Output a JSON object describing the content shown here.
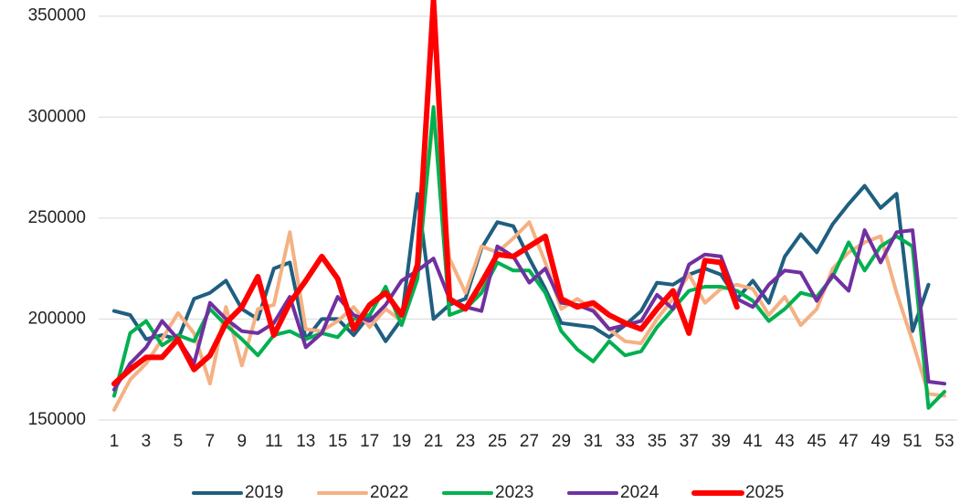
{
  "chart_data": {
    "type": "line",
    "categories": [
      "1",
      null,
      "3",
      null,
      "5",
      null,
      "7",
      null,
      "9",
      null,
      "11",
      null,
      "13",
      null,
      "15",
      null,
      "17",
      null,
      "19",
      null,
      "21",
      null,
      "23",
      null,
      "25",
      null,
      "27",
      null,
      "29",
      null,
      "31",
      null,
      "33",
      null,
      "35",
      null,
      "37",
      null,
      "39",
      null,
      "41",
      null,
      "43",
      null,
      "45",
      null,
      "47",
      null,
      "49",
      null,
      "51",
      null,
      "53"
    ],
    "ylim": [
      150000,
      358000
    ],
    "yticks": [
      150000,
      200000,
      250000,
      300000,
      350000
    ],
    "grid": true,
    "legend": "bottom",
    "series": [
      {
        "name": "2019",
        "color": "#1f5f80",
        "values": [
          204000,
          202000,
          190000,
          192000,
          190000,
          210000,
          213000,
          219000,
          205000,
          200000,
          225000,
          228000,
          190000,
          200000,
          200000,
          192000,
          202000,
          189000,
          200000,
          262000,
          200000,
          207000,
          210000,
          235000,
          248000,
          246000,
          230000,
          215000,
          198000,
          197000,
          196000,
          191000,
          197000,
          204000,
          218000,
          217000,
          222000,
          225000,
          222000,
          210000,
          219000,
          208000,
          231000,
          242000,
          233000,
          247000,
          257000,
          266000,
          255000,
          262000,
          194000,
          217000,
          null
        ]
      },
      {
        "name": "2022",
        "color": "#f4b183",
        "values": [
          155000,
          170000,
          178000,
          190000,
          203000,
          193000,
          168000,
          206000,
          177000,
          205000,
          207000,
          243000,
          195000,
          194000,
          199000,
          206000,
          196000,
          205000,
          199000,
          226000,
          300000,
          230000,
          213000,
          236000,
          233000,
          240000,
          248000,
          228000,
          205000,
          210000,
          205000,
          195000,
          189000,
          188000,
          200000,
          210000,
          222000,
          208000,
          215000,
          217000,
          215000,
          202000,
          211000,
          197000,
          205000,
          225000,
          233000,
          238000,
          241000,
          213000,
          189000,
          163000,
          162000
        ]
      },
      {
        "name": "2023",
        "color": "#00b050",
        "values": [
          162000,
          193000,
          199000,
          187000,
          192000,
          189000,
          205000,
          197000,
          190000,
          182000,
          192000,
          194000,
          190000,
          193000,
          191000,
          200000,
          202000,
          216000,
          197000,
          220000,
          305000,
          202000,
          205000,
          213000,
          228000,
          224000,
          224000,
          213000,
          194000,
          185000,
          179000,
          189000,
          182000,
          184000,
          196000,
          205000,
          214000,
          216000,
          216000,
          214000,
          209000,
          199000,
          205000,
          213000,
          211000,
          221000,
          238000,
          224000,
          236000,
          241000,
          236000,
          156000,
          164000
        ]
      },
      {
        "name": "2024",
        "color": "#7030a0",
        "values": [
          165000,
          178000,
          186000,
          199000,
          190000,
          178000,
          208000,
          200000,
          194000,
          193000,
          198000,
          211000,
          186000,
          193000,
          211000,
          202000,
          199000,
          207000,
          219000,
          224000,
          230000,
          210000,
          206000,
          204000,
          236000,
          231000,
          218000,
          225000,
          208000,
          207000,
          204000,
          195000,
          197000,
          199000,
          212000,
          205000,
          227000,
          232000,
          231000,
          210000,
          206000,
          217000,
          224000,
          223000,
          209000,
          222000,
          214000,
          244000,
          228000,
          243000,
          244000,
          169000,
          168000
        ]
      },
      {
        "name": "2025",
        "color": "#ff0000",
        "values": [
          168000,
          175000,
          181000,
          181000,
          190000,
          175000,
          182000,
          198000,
          206000,
          221000,
          192000,
          208000,
          219000,
          231000,
          220000,
          195000,
          207000,
          213000,
          202000,
          227000,
          358000,
          210000,
          205000,
          218000,
          232000,
          231000,
          236000,
          241000,
          210000,
          206000,
          208000,
          202000,
          198000,
          195000,
          205000,
          214000,
          193000,
          229000,
          228000,
          206000,
          null,
          null,
          null,
          null,
          null,
          null,
          null,
          null,
          null,
          null,
          null,
          null,
          null
        ]
      }
    ]
  }
}
